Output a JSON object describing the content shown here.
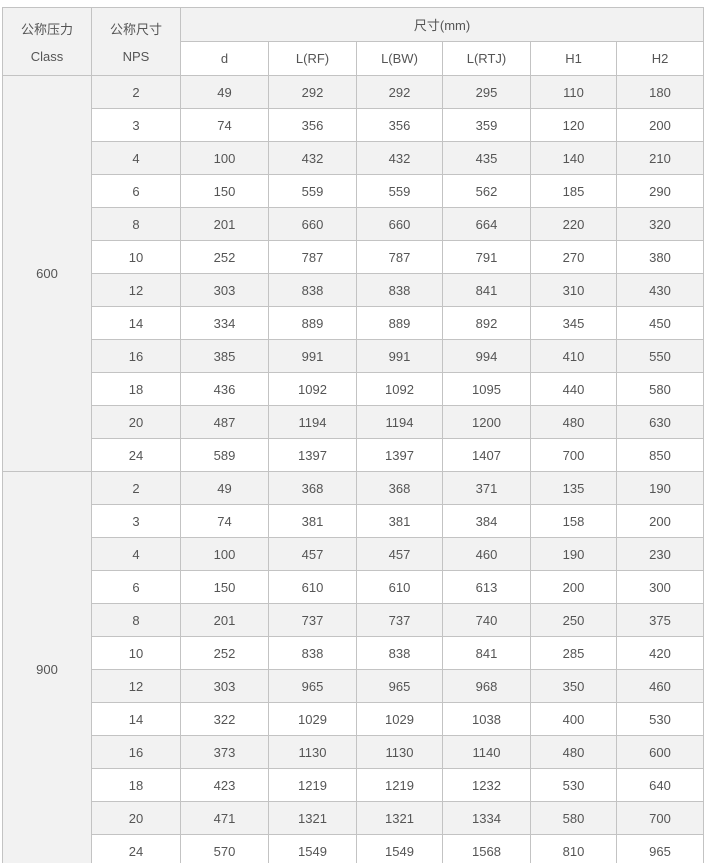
{
  "colors": {
    "header_bg": "#f2f2f2",
    "stripe_bg": "#f2f2f2",
    "row_bg": "#ffffff",
    "border": "#c3c3c3",
    "outer_border": "#adadad",
    "text": "#555555"
  },
  "table": {
    "header": {
      "class_cn": "公称压力",
      "class_en": "Class",
      "nps_cn": "公称尺寸",
      "nps_en": "NPS",
      "size_header": "尺寸(mm)",
      "sub_headers": [
        "d",
        "L(RF)",
        "L(BW)",
        "L(RTJ)",
        "H1",
        "H2"
      ]
    },
    "sections": [
      {
        "class_label": "600",
        "rows": [
          [
            2,
            49,
            292,
            292,
            295,
            110,
            180
          ],
          [
            3,
            74,
            356,
            356,
            359,
            120,
            200
          ],
          [
            4,
            100,
            432,
            432,
            435,
            140,
            210
          ],
          [
            6,
            150,
            559,
            559,
            562,
            185,
            290
          ],
          [
            8,
            201,
            660,
            660,
            664,
            220,
            320
          ],
          [
            10,
            252,
            787,
            787,
            791,
            270,
            380
          ],
          [
            12,
            303,
            838,
            838,
            841,
            310,
            430
          ],
          [
            14,
            334,
            889,
            889,
            892,
            345,
            450
          ],
          [
            16,
            385,
            991,
            991,
            994,
            410,
            550
          ],
          [
            18,
            436,
            1092,
            1092,
            1095,
            440,
            580
          ],
          [
            20,
            487,
            1194,
            1194,
            1200,
            480,
            630
          ],
          [
            24,
            589,
            1397,
            1397,
            1407,
            700,
            850
          ]
        ]
      },
      {
        "class_label": "900",
        "rows": [
          [
            2,
            49,
            368,
            368,
            371,
            135,
            190
          ],
          [
            3,
            74,
            381,
            381,
            384,
            158,
            200
          ],
          [
            4,
            100,
            457,
            457,
            460,
            190,
            230
          ],
          [
            6,
            150,
            610,
            610,
            613,
            200,
            300
          ],
          [
            8,
            201,
            737,
            737,
            740,
            250,
            375
          ],
          [
            10,
            252,
            838,
            838,
            841,
            285,
            420
          ],
          [
            12,
            303,
            965,
            965,
            968,
            350,
            460
          ],
          [
            14,
            322,
            1029,
            1029,
            1038,
            400,
            530
          ],
          [
            16,
            373,
            1130,
            1130,
            1140,
            480,
            600
          ],
          [
            18,
            423,
            1219,
            1219,
            1232,
            530,
            640
          ],
          [
            20,
            471,
            1321,
            1321,
            1334,
            580,
            700
          ],
          [
            24,
            570,
            1549,
            1549,
            1568,
            810,
            965
          ]
        ]
      }
    ]
  }
}
